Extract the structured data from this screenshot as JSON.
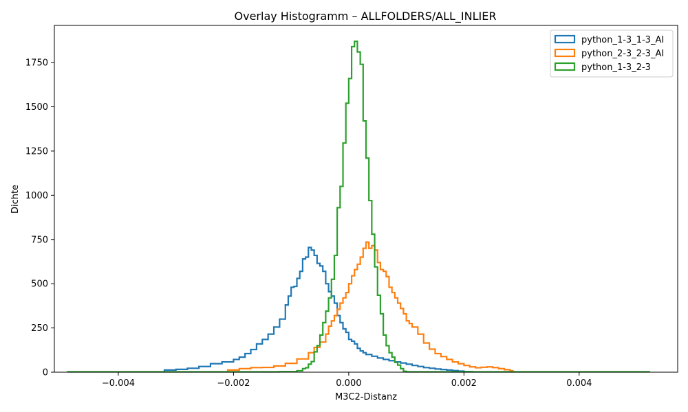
{
  "chart_data": {
    "type": "histogram",
    "title": "Overlay Histogramm – ALLFOLDERS/ALL_INLIER",
    "xlabel": "M3C2-Distanz",
    "ylabel": "Dichte",
    "xlim": [
      -0.00511,
      0.00571
    ],
    "ylim": [
      0,
      1960
    ],
    "xticks": [
      -0.004,
      -0.002,
      0.0,
      0.002,
      0.004
    ],
    "xtick_labels": [
      "−0.004",
      "−0.002",
      "0.000",
      "0.002",
      "0.004"
    ],
    "yticks": [
      0,
      250,
      500,
      750,
      1000,
      1250,
      1500,
      1750
    ],
    "ytick_labels": [
      "0",
      "250",
      "500",
      "750",
      "1000",
      "1250",
      "1500",
      "1750"
    ],
    "legend_position": "top-right",
    "series": [
      {
        "name": "python_1-3_1-3_AI",
        "color": "#1f77b4",
        "histtype": "step",
        "points": [
          [
            -0.0032,
            0
          ],
          [
            -0.0032,
            12
          ],
          [
            -0.003,
            16
          ],
          [
            -0.0028,
            22
          ],
          [
            -0.0026,
            32
          ],
          [
            -0.0024,
            48
          ],
          [
            -0.0022,
            58
          ],
          [
            -0.002,
            72
          ],
          [
            -0.0019,
            85
          ],
          [
            -0.0018,
            105
          ],
          [
            -0.0017,
            128
          ],
          [
            -0.0016,
            160
          ],
          [
            -0.0015,
            185
          ],
          [
            -0.0014,
            215
          ],
          [
            -0.0013,
            255
          ],
          [
            -0.0012,
            300
          ],
          [
            -0.0011,
            380
          ],
          [
            -0.00105,
            430
          ],
          [
            -0.001,
            480
          ],
          [
            -0.00095,
            485
          ],
          [
            -0.0009,
            530
          ],
          [
            -0.00085,
            570
          ],
          [
            -0.0008,
            640
          ],
          [
            -0.00075,
            650
          ],
          [
            -0.0007,
            705
          ],
          [
            -0.00065,
            690
          ],
          [
            -0.0006,
            660
          ],
          [
            -0.00055,
            615
          ],
          [
            -0.0005,
            600
          ],
          [
            -0.00045,
            570
          ],
          [
            -0.0004,
            500
          ],
          [
            -0.00035,
            455
          ],
          [
            -0.0003,
            430
          ],
          [
            -0.00025,
            390
          ],
          [
            -0.0002,
            320
          ],
          [
            -0.00015,
            280
          ],
          [
            -0.0001,
            245
          ],
          [
            -5e-05,
            225
          ],
          [
            0.0,
            185
          ],
          [
            5e-05,
            175
          ],
          [
            0.0001,
            160
          ],
          [
            0.00015,
            135
          ],
          [
            0.0002,
            120
          ],
          [
            0.00025,
            110
          ],
          [
            0.0003,
            100
          ],
          [
            0.0004,
            90
          ],
          [
            0.0005,
            80
          ],
          [
            0.0006,
            72
          ],
          [
            0.0007,
            65
          ],
          [
            0.0008,
            58
          ],
          [
            0.0009,
            52
          ],
          [
            0.001,
            45
          ],
          [
            0.0011,
            38
          ],
          [
            0.0012,
            32
          ],
          [
            0.0013,
            26
          ],
          [
            0.0014,
            22
          ],
          [
            0.0015,
            18
          ],
          [
            0.0016,
            15
          ],
          [
            0.0017,
            12
          ],
          [
            0.0018,
            9
          ],
          [
            0.0019,
            6
          ],
          [
            0.002,
            3
          ],
          [
            0.00215,
            3
          ],
          [
            0.00215,
            0
          ]
        ]
      },
      {
        "name": "python_2-3_2-3_AI",
        "color": "#ff7f0e",
        "histtype": "step",
        "points": [
          [
            -0.0021,
            0
          ],
          [
            -0.0021,
            12
          ],
          [
            -0.0019,
            20
          ],
          [
            -0.0017,
            26
          ],
          [
            -0.0015,
            27
          ],
          [
            -0.0013,
            35
          ],
          [
            -0.0011,
            50
          ],
          [
            -0.0009,
            75
          ],
          [
            -0.0007,
            110
          ],
          [
            -0.0006,
            140
          ],
          [
            -0.0005,
            170
          ],
          [
            -0.0004,
            215
          ],
          [
            -0.00035,
            260
          ],
          [
            -0.0003,
            290
          ],
          [
            -0.00025,
            320
          ],
          [
            -0.0002,
            355
          ],
          [
            -0.00015,
            390
          ],
          [
            -0.0001,
            420
          ],
          [
            -5e-05,
            450
          ],
          [
            0.0,
            500
          ],
          [
            5e-05,
            545
          ],
          [
            0.0001,
            580
          ],
          [
            0.00015,
            610
          ],
          [
            0.0002,
            650
          ],
          [
            0.00025,
            700
          ],
          [
            0.0003,
            735
          ],
          [
            0.00035,
            700
          ],
          [
            0.0004,
            715
          ],
          [
            0.00045,
            690
          ],
          [
            0.0005,
            620
          ],
          [
            0.00055,
            580
          ],
          [
            0.0006,
            570
          ],
          [
            0.00065,
            540
          ],
          [
            0.0007,
            480
          ],
          [
            0.00075,
            450
          ],
          [
            0.0008,
            420
          ],
          [
            0.00085,
            390
          ],
          [
            0.0009,
            360
          ],
          [
            0.00095,
            330
          ],
          [
            0.001,
            290
          ],
          [
            0.00105,
            275
          ],
          [
            0.0011,
            255
          ],
          [
            0.0012,
            215
          ],
          [
            0.0013,
            165
          ],
          [
            0.0014,
            130
          ],
          [
            0.0015,
            105
          ],
          [
            0.0016,
            88
          ],
          [
            0.0017,
            72
          ],
          [
            0.0018,
            58
          ],
          [
            0.0019,
            48
          ],
          [
            0.002,
            38
          ],
          [
            0.0021,
            30
          ],
          [
            0.0022,
            25
          ],
          [
            0.0023,
            28
          ],
          [
            0.0024,
            30
          ],
          [
            0.0025,
            26
          ],
          [
            0.0026,
            20
          ],
          [
            0.0027,
            14
          ],
          [
            0.0028,
            8
          ],
          [
            0.00285,
            0
          ]
        ]
      },
      {
        "name": "python_1-3_2-3",
        "color": "#2ca02c",
        "histtype": "step",
        "points": [
          [
            -0.00488,
            0
          ],
          [
            -0.00488,
            2
          ],
          [
            -0.0024,
            2
          ],
          [
            -0.0012,
            3
          ],
          [
            -0.0009,
            8
          ],
          [
            -0.0008,
            20
          ],
          [
            -0.00075,
            25
          ],
          [
            -0.0007,
            45
          ],
          [
            -0.00065,
            60
          ],
          [
            -0.0006,
            115
          ],
          [
            -0.00055,
            150
          ],
          [
            -0.0005,
            210
          ],
          [
            -0.00045,
            280
          ],
          [
            -0.0004,
            345
          ],
          [
            -0.00035,
            420
          ],
          [
            -0.0003,
            525
          ],
          [
            -0.00025,
            660
          ],
          [
            -0.0002,
            930
          ],
          [
            -0.00015,
            1050
          ],
          [
            -0.0001,
            1295
          ],
          [
            -5e-05,
            1520
          ],
          [
            0.0,
            1660
          ],
          [
            5e-05,
            1840
          ],
          [
            0.0001,
            1870
          ],
          [
            0.00015,
            1810
          ],
          [
            0.0002,
            1740
          ],
          [
            0.00025,
            1420
          ],
          [
            0.0003,
            1210
          ],
          [
            0.00035,
            970
          ],
          [
            0.0004,
            780
          ],
          [
            0.00045,
            595
          ],
          [
            0.0005,
            435
          ],
          [
            0.00055,
            330
          ],
          [
            0.0006,
            210
          ],
          [
            0.00065,
            150
          ],
          [
            0.0007,
            110
          ],
          [
            0.00075,
            85
          ],
          [
            0.0008,
            55
          ],
          [
            0.00085,
            40
          ],
          [
            0.0009,
            20
          ],
          [
            0.00095,
            5
          ],
          [
            0.001,
            2
          ],
          [
            0.00522,
            2
          ],
          [
            0.00522,
            0
          ]
        ]
      }
    ]
  }
}
